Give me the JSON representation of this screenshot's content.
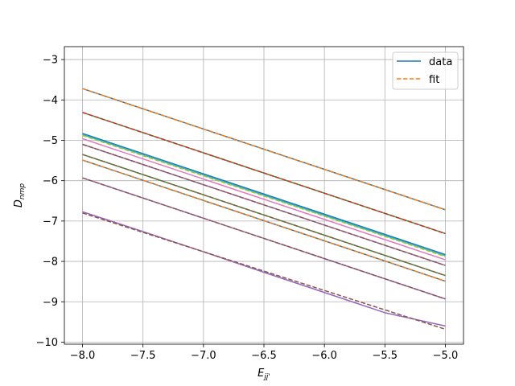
{
  "chart_data": {
    "type": "line",
    "title": "",
    "xlabel_main": "E",
    "xlabel_sub": "jj'",
    "ylabel_main": "D",
    "ylabel_sub": "nmp",
    "xlim": [
      -8.15,
      -4.85
    ],
    "ylim": [
      -10.05,
      -2.68
    ],
    "xticks": [
      -8.0,
      -7.5,
      -7.0,
      -6.5,
      -6.0,
      -5.5,
      -5.0
    ],
    "xtick_labels": [
      "−8.0",
      "−7.5",
      "−7.0",
      "−6.5",
      "−6.0",
      "−5.5",
      "−5.0"
    ],
    "yticks": [
      -10,
      -9,
      -8,
      -7,
      -6,
      -5,
      -4,
      -3
    ],
    "ytick_labels": [
      "−10",
      "−9",
      "−8",
      "−7",
      "−6",
      "−5",
      "−4",
      "−3"
    ],
    "grid": true,
    "legend_position": "top-right",
    "legend": [
      {
        "label": "data",
        "style": "solid",
        "color": "#1f77b4"
      },
      {
        "label": "fit",
        "style": "dashed",
        "color": "#ff7f0e"
      }
    ],
    "series": [
      {
        "kind": "data",
        "color": "#1f77b4",
        "x": [
          -8.0,
          -5.0
        ],
        "y": [
          -3.72,
          -6.72
        ]
      },
      {
        "kind": "fit",
        "color": "#ff7f0e",
        "x": [
          -8.0,
          -5.0
        ],
        "y": [
          -3.72,
          -6.72
        ]
      },
      {
        "kind": "data",
        "color": "#2ca02c",
        "x": [
          -8.0,
          -5.0
        ],
        "y": [
          -4.31,
          -7.31
        ]
      },
      {
        "kind": "fit",
        "color": "#d62728",
        "x": [
          -8.0,
          -5.0
        ],
        "y": [
          -4.31,
          -7.31
        ]
      },
      {
        "kind": "data",
        "color": "#1f77b4",
        "x": [
          -8.0,
          -5.0
        ],
        "y": [
          -4.83,
          -7.83
        ]
      },
      {
        "kind": "data",
        "color": "#17becf",
        "x": [
          -8.0,
          -5.0
        ],
        "y": [
          -4.86,
          -7.86
        ]
      },
      {
        "kind": "fit",
        "color": "#bcbd22",
        "x": [
          -8.0,
          -5.0
        ],
        "y": [
          -4.88,
          -7.88
        ]
      },
      {
        "kind": "data",
        "color": "#e377c2",
        "x": [
          -8.0,
          -5.0
        ],
        "y": [
          -4.96,
          -7.96
        ]
      },
      {
        "kind": "data",
        "color": "#9467bd",
        "x": [
          -8.0,
          -5.0
        ],
        "y": [
          -5.1,
          -8.1
        ]
      },
      {
        "kind": "fit",
        "color": "#8c564b",
        "x": [
          -8.0,
          -5.0
        ],
        "y": [
          -5.1,
          -8.1
        ]
      },
      {
        "kind": "data",
        "color": "#2ca02c",
        "x": [
          -8.0,
          -5.0
        ],
        "y": [
          -5.35,
          -8.35
        ]
      },
      {
        "kind": "fit",
        "color": "#8c564b",
        "x": [
          -8.0,
          -5.0
        ],
        "y": [
          -5.35,
          -8.35
        ]
      },
      {
        "kind": "data",
        "color": "#1f77b4",
        "x": [
          -8.0,
          -5.0
        ],
        "y": [
          -5.49,
          -8.49
        ]
      },
      {
        "kind": "fit",
        "color": "#ff7f0e",
        "x": [
          -8.0,
          -5.0
        ],
        "y": [
          -5.49,
          -8.49
        ]
      },
      {
        "kind": "data",
        "color": "#9467bd",
        "x": [
          -8.0,
          -5.0
        ],
        "y": [
          -5.93,
          -8.93
        ]
      },
      {
        "kind": "fit",
        "color": "#8c564b",
        "x": [
          -8.0,
          -5.0
        ],
        "y": [
          -5.93,
          -8.93
        ]
      },
      {
        "kind": "data",
        "color": "#9467bd",
        "x": [
          -8.0,
          -7.5,
          -7.0,
          -6.5,
          -6.0,
          -5.5,
          -5.0
        ],
        "y": [
          -6.77,
          -7.26,
          -7.76,
          -8.27,
          -8.77,
          -9.27,
          -9.6
        ]
      },
      {
        "kind": "fit",
        "color": "#8c564b",
        "x": [
          -8.0,
          -5.0
        ],
        "y": [
          -6.8,
          -9.68
        ]
      }
    ]
  }
}
